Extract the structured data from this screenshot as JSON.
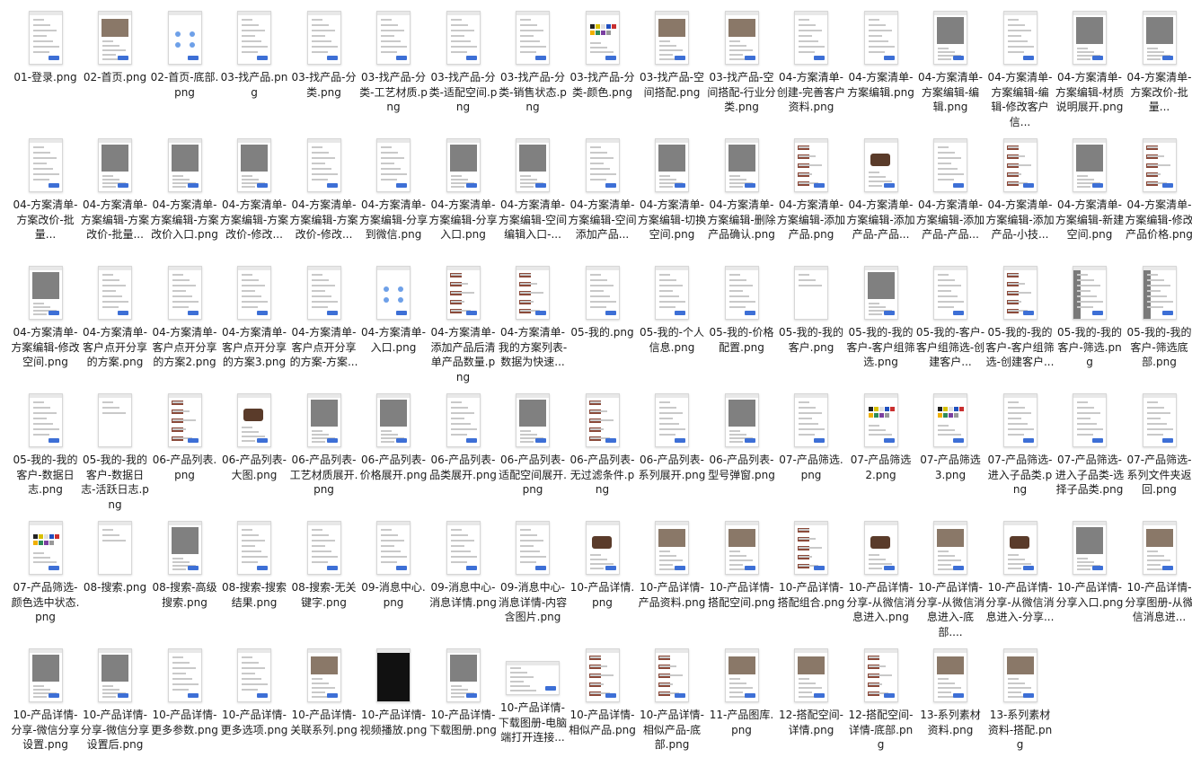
{
  "files": [
    {
      "name": "01-登录.png",
      "style": "form"
    },
    {
      "name": "02-首页.png",
      "style": "photo"
    },
    {
      "name": "02-首页-底部.png",
      "style": "icons"
    },
    {
      "name": "03-找产品.png",
      "style": "grid"
    },
    {
      "name": "03-找产品-分类.png",
      "style": "grid"
    },
    {
      "name": "03-找产品-分类-工艺材质.png",
      "style": "list"
    },
    {
      "name": "03-找产品-分类-适配空间.png",
      "style": "list"
    },
    {
      "name": "03-找产品-分类-销售状态.png",
      "style": "list"
    },
    {
      "name": "03-找产品-分类-颜色.png",
      "style": "colors"
    },
    {
      "name": "03-找产品-空间搭配.png",
      "style": "photo"
    },
    {
      "name": "03-找产品-空间搭配-行业分类.png",
      "style": "photo"
    },
    {
      "name": "04-方案清单-创建-完善客户资料.png",
      "style": "form"
    },
    {
      "name": "04-方案清单-方案编辑.png",
      "style": "form"
    },
    {
      "name": "04-方案清单-方案编辑-编辑.png",
      "style": "gray"
    },
    {
      "name": "04-方案清单-方案编辑-编辑-修改客户信...",
      "style": "form"
    },
    {
      "name": "04-方案清单-方案编辑-材质说明展开.png",
      "style": "gray"
    },
    {
      "name": "04-方案清单-方案改价-批量...",
      "style": "gray"
    },
    {
      "name": "04-方案清单-方案改价-批量...",
      "style": "form"
    },
    {
      "name": "04-方案清单-方案编辑-方案改价-批量...",
      "style": "dark"
    },
    {
      "name": "04-方案清单-方案编辑-方案改价入口.png",
      "style": "gray"
    },
    {
      "name": "04-方案清单-方案编辑-方案改价-修改...",
      "style": "gray"
    },
    {
      "name": "04-方案清单-方案编辑-方案改价-修改...",
      "style": "form"
    },
    {
      "name": "04-方案清单-方案编辑-分享到微信.png",
      "style": "form"
    },
    {
      "name": "04-方案清单-方案编辑-分享入口.png",
      "style": "gray"
    },
    {
      "name": "04-方案清单-方案编辑-空间编辑入口-...",
      "style": "gray"
    },
    {
      "name": "04-方案清单-方案编辑-空间添加产品...",
      "style": "form"
    },
    {
      "name": "04-方案清单-方案编辑-切换空间.png",
      "style": "gray"
    },
    {
      "name": "04-方案清单-方案编辑-删除产品确认.png",
      "style": "gray"
    },
    {
      "name": "04-方案清单-方案编辑-添加产品.png",
      "style": "products"
    },
    {
      "name": "04-方案清单-方案编辑-添加产品-产品...",
      "style": "sofa"
    },
    {
      "name": "04-方案清单-方案编辑-添加产品-产品...",
      "style": "form"
    },
    {
      "name": "04-方案清单-方案编辑-添加产品-小技...",
      "style": "products"
    },
    {
      "name": "04-方案清单-方案编辑-新建空间.png",
      "style": "gray"
    },
    {
      "name": "04-方案清单-方案编辑-修改产品价格.png",
      "style": "products"
    },
    {
      "name": "04-方案清单-方案编辑-修改空间.png",
      "style": "gray"
    },
    {
      "name": "04-方案清单-客户点开分享的方案.png",
      "style": "form"
    },
    {
      "name": "04-方案清单-客户点开分享的方案2.png",
      "style": "form"
    },
    {
      "name": "04-方案清单-客户点开分享的方案3.png",
      "style": "form"
    },
    {
      "name": "04-方案清单-客户点开分享的方案-方案...",
      "style": "form"
    },
    {
      "name": "04-方案清单-入口.png",
      "style": "icons"
    },
    {
      "name": "04-方案清单-添加产品后清单产品数量.png",
      "style": "products"
    },
    {
      "name": "04-方案清单-我的方案列表-数据为快速...",
      "style": "products"
    },
    {
      "name": "05-我的.png",
      "style": "list"
    },
    {
      "name": "05-我的-个人信息.png",
      "style": "list"
    },
    {
      "name": "05-我的-价格配置.png",
      "style": "list"
    },
    {
      "name": "05-我的-我的客户.png",
      "style": "plain"
    },
    {
      "name": "05-我的-我的客户-客户组筛选.png",
      "style": "gray"
    },
    {
      "name": "05-我的-客户-客户组筛选-创建客户...",
      "style": "form"
    },
    {
      "name": "05-我的-我的客户-客户组筛选-创建客户...",
      "style": "products"
    },
    {
      "name": "05-我的-我的客户-筛选.png",
      "style": "side"
    },
    {
      "name": "05-我的-我的客户-筛选底部.png",
      "style": "side"
    },
    {
      "name": "05-我的-我的客户-数据日志.png",
      "style": "list"
    },
    {
      "name": "05-我的-我的客户-数据日志-活跃日志.png",
      "style": "plain"
    },
    {
      "name": "06-产品列表.png",
      "style": "products"
    },
    {
      "name": "06-产品列表-大图.png",
      "style": "sofa"
    },
    {
      "name": "06-产品列表-工艺材质展开.png",
      "style": "dark"
    },
    {
      "name": "06-产品列表-价格展开.png",
      "style": "dark"
    },
    {
      "name": "06-产品列表-品类展开.png",
      "style": "list"
    },
    {
      "name": "06-产品列表-适配空间展开.png",
      "style": "dark"
    },
    {
      "name": "06-产品列表-无过滤条件.png",
      "style": "products"
    },
    {
      "name": "06-产品列表-系列展开.png",
      "style": "list"
    },
    {
      "name": "06-产品列表-型号弹窗.png",
      "style": "gray"
    },
    {
      "name": "07-产品筛选.png",
      "style": "list"
    },
    {
      "name": "07-产品筛选2.png",
      "style": "colors"
    },
    {
      "name": "07-产品筛选3.png",
      "style": "colors"
    },
    {
      "name": "07-产品筛选-进入子品类.png",
      "style": "list"
    },
    {
      "name": "07-产品筛选-进入子品类-选择子品类.png",
      "style": "list"
    },
    {
      "name": "07-产品筛选-系列文件夹返回.png",
      "style": "list"
    },
    {
      "name": "07-产品筛选-颜色选中状态.png",
      "style": "colors"
    },
    {
      "name": "08-搜索.png",
      "style": "plain"
    },
    {
      "name": "08-搜索-高级搜索.png",
      "style": "gray"
    },
    {
      "name": "08-搜索-搜索结果.png",
      "style": "list"
    },
    {
      "name": "08-搜索-无关键字.png",
      "style": "list"
    },
    {
      "name": "09-消息中心.png",
      "style": "list"
    },
    {
      "name": "09-消息中心-消息详情.png",
      "style": "list"
    },
    {
      "name": "09-消息中心-消息详情-内容含图片.png",
      "style": "list"
    },
    {
      "name": "10-产品详情.png",
      "style": "sofa"
    },
    {
      "name": "10-产品详情-产品资料.png",
      "style": "photo"
    },
    {
      "name": "10-产品详情-搭配空间.png",
      "style": "photo"
    },
    {
      "name": "10-产品详情-搭配组合.png",
      "style": "products"
    },
    {
      "name": "10-产品详情-分享-从微信消息进入.png",
      "style": "sofa"
    },
    {
      "name": "10-产品详情-分享-从微信消息进入-底部....",
      "style": "photo"
    },
    {
      "name": "10-产品详情-分享-从微信消息进入-分享...",
      "style": "sofa"
    },
    {
      "name": "10-产品详情-分享入口.png",
      "style": "dark"
    },
    {
      "name": "10-产品详情-分享图册-从微信消息进...",
      "style": "photo"
    },
    {
      "name": "10-产品详情-分享-微信分享设置.png",
      "style": "dark"
    },
    {
      "name": "10-产品详情-分享-微信分享设置后.png",
      "style": "gray"
    },
    {
      "name": "10-产品详情-更多参数.png",
      "style": "list"
    },
    {
      "name": "10-产品详情-更多选项.png",
      "style": "form"
    },
    {
      "name": "10-产品详情-关联系列.png",
      "style": "photo"
    },
    {
      "name": "10-产品详情-视频播放.png",
      "style": "black"
    },
    {
      "name": "10-产品详情-下载图册.png",
      "style": "gray"
    },
    {
      "name": "10-产品详情-下载图册-电脑端打开连接...",
      "style": "wide"
    },
    {
      "name": "10-产品详情-相似产品.png",
      "style": "products"
    },
    {
      "name": "10-产品详情-相似产品-底部.png",
      "style": "products"
    },
    {
      "name": "11-产品图库.png",
      "style": "photo"
    },
    {
      "name": "12-搭配空间-详情.png",
      "style": "photo"
    },
    {
      "name": "12-搭配空间-详情-底部.png",
      "style": "products"
    },
    {
      "name": "13-系列素材资料.png",
      "style": "photo"
    },
    {
      "name": "13-系列素材资料-搭配.png",
      "style": "photo"
    }
  ]
}
